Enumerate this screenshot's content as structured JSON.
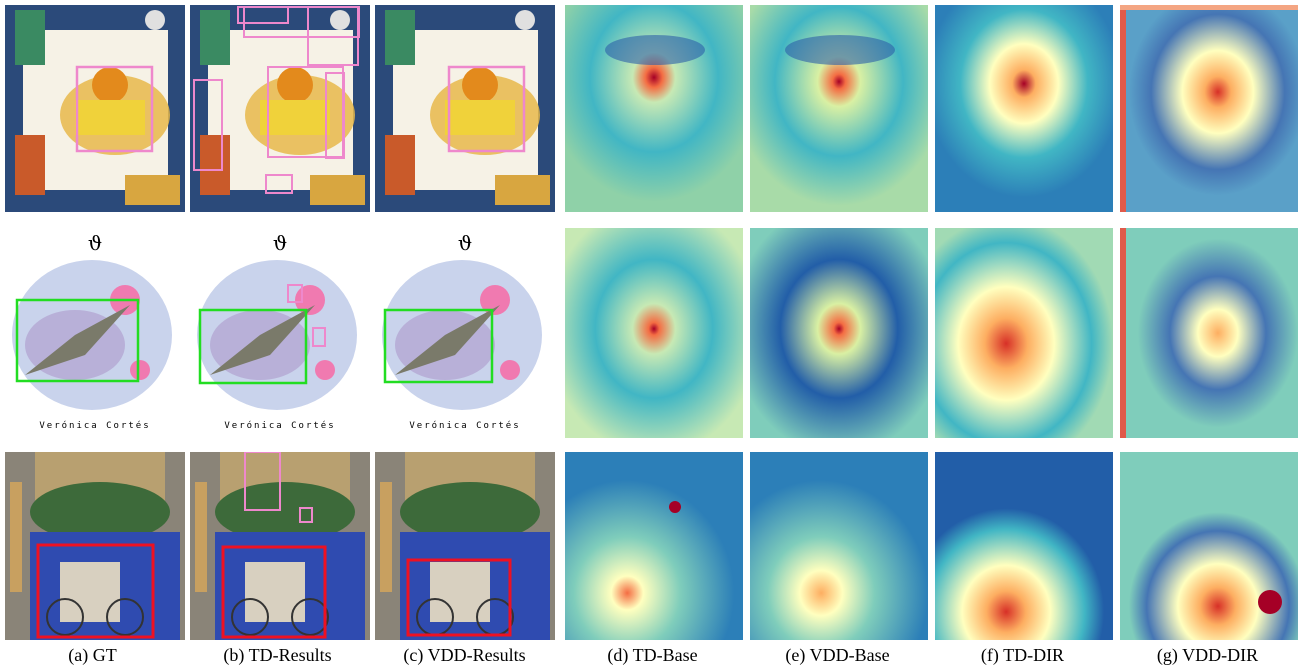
{
  "captions": [
    {
      "label": "(a)",
      "name": "GT"
    },
    {
      "label": "(b)",
      "name": "TD-Results"
    },
    {
      "label": "(c)",
      "name": "VDD-Results"
    },
    {
      "label": "(d)",
      "name": "TD-Base"
    },
    {
      "label": "(e)",
      "name": "VDD-Base"
    },
    {
      "label": "(f)",
      "name": "TD-DIR"
    },
    {
      "label": "(g)",
      "name": "VDD-DIR"
    }
  ],
  "artist_signature": "Verónica Cortés",
  "colors": {
    "gt_box_pink": "#ee88cc",
    "gt_box_green": "#22dd22",
    "gt_box_red": "#ee1122",
    "heatmap_low": "#3b5fa8",
    "heatmap_mid": "#f0e68c",
    "heatmap_high": "#a50026"
  }
}
